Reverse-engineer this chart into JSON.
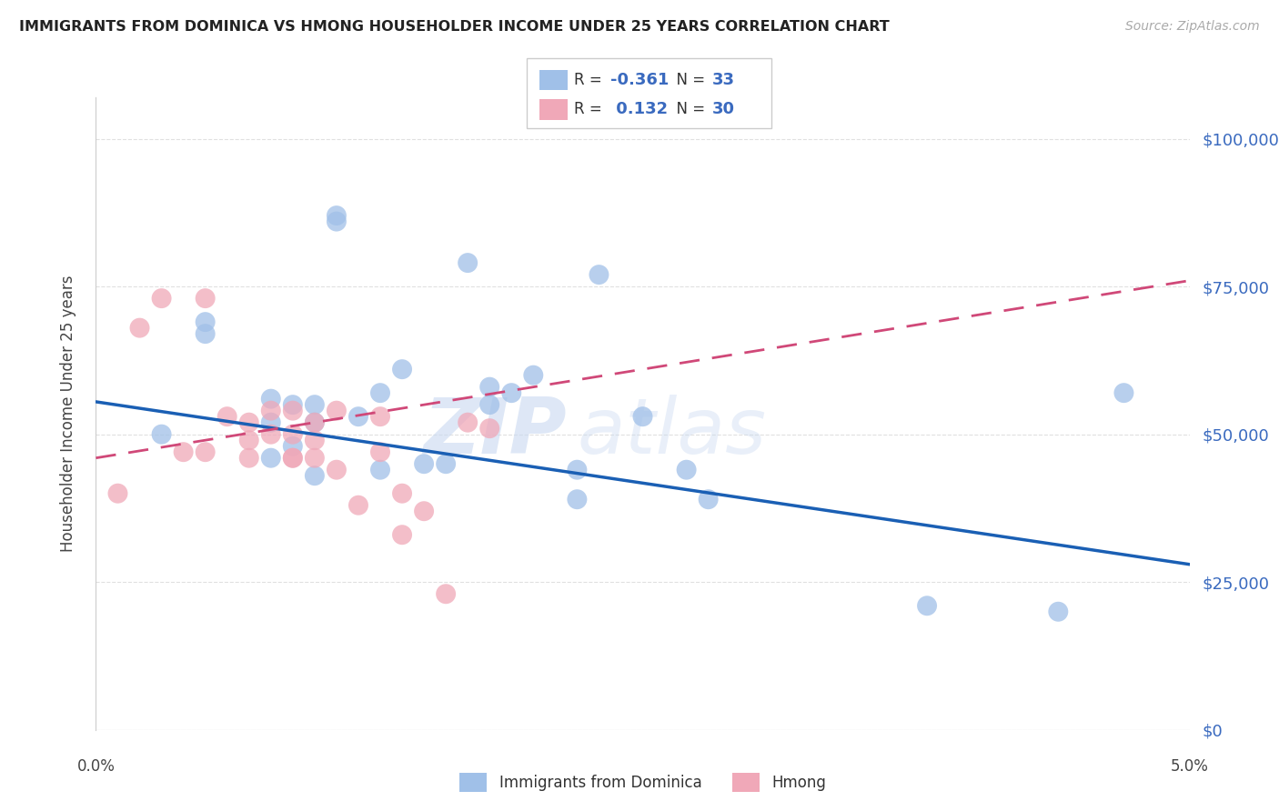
{
  "title": "IMMIGRANTS FROM DOMINICA VS HMONG HOUSEHOLDER INCOME UNDER 25 YEARS CORRELATION CHART",
  "source": "Source: ZipAtlas.com",
  "ylabel": "Householder Income Under 25 years",
  "ytick_labels": [
    "$0",
    "$25,000",
    "$50,000",
    "$75,000",
    "$100,000"
  ],
  "ytick_values": [
    0,
    25000,
    50000,
    75000,
    100000
  ],
  "xlim": [
    0.0,
    0.05
  ],
  "ylim": [
    0,
    107000
  ],
  "watermark_zip": "ZIP",
  "watermark_atlas": "atlas",
  "r1": "-0.361",
  "n1": "33",
  "r2": "0.132",
  "n2": "30",
  "color_blue_dot": "#a0c0e8",
  "color_blue_line": "#1a5fb4",
  "color_pink_dot": "#f0a8b8",
  "color_pink_line": "#d04878",
  "color_axis_val": "#3a6abf",
  "color_rn_text": "#3a6abf",
  "blue_x": [
    0.003,
    0.005,
    0.005,
    0.008,
    0.008,
    0.008,
    0.009,
    0.009,
    0.01,
    0.01,
    0.011,
    0.011,
    0.012,
    0.013,
    0.013,
    0.014,
    0.015,
    0.016,
    0.017,
    0.018,
    0.018,
    0.019,
    0.02,
    0.022,
    0.022,
    0.023,
    0.025,
    0.027,
    0.028,
    0.038,
    0.044,
    0.047,
    0.01
  ],
  "blue_y": [
    50000,
    69000,
    67000,
    56000,
    52000,
    46000,
    55000,
    48000,
    55000,
    52000,
    87000,
    86000,
    53000,
    57000,
    44000,
    61000,
    45000,
    45000,
    79000,
    58000,
    55000,
    57000,
    60000,
    44000,
    39000,
    77000,
    53000,
    44000,
    39000,
    21000,
    20000,
    57000,
    43000
  ],
  "pink_x": [
    0.001,
    0.002,
    0.003,
    0.004,
    0.005,
    0.005,
    0.006,
    0.007,
    0.007,
    0.007,
    0.008,
    0.008,
    0.009,
    0.009,
    0.009,
    0.01,
    0.01,
    0.01,
    0.011,
    0.011,
    0.012,
    0.013,
    0.013,
    0.014,
    0.014,
    0.015,
    0.016,
    0.017,
    0.018,
    0.009
  ],
  "pink_y": [
    40000,
    68000,
    73000,
    47000,
    73000,
    47000,
    53000,
    52000,
    49000,
    46000,
    54000,
    50000,
    54000,
    50000,
    46000,
    52000,
    49000,
    46000,
    54000,
    44000,
    38000,
    53000,
    47000,
    40000,
    33000,
    37000,
    23000,
    52000,
    51000,
    46000
  ],
  "bg_color": "#ffffff",
  "grid_color": "#e0e0e0",
  "xlabel_0": "0.0%",
  "xlabel_5": "5.0%",
  "legend_label_blue": "Immigrants from Dominica",
  "legend_label_pink": "Hmong"
}
